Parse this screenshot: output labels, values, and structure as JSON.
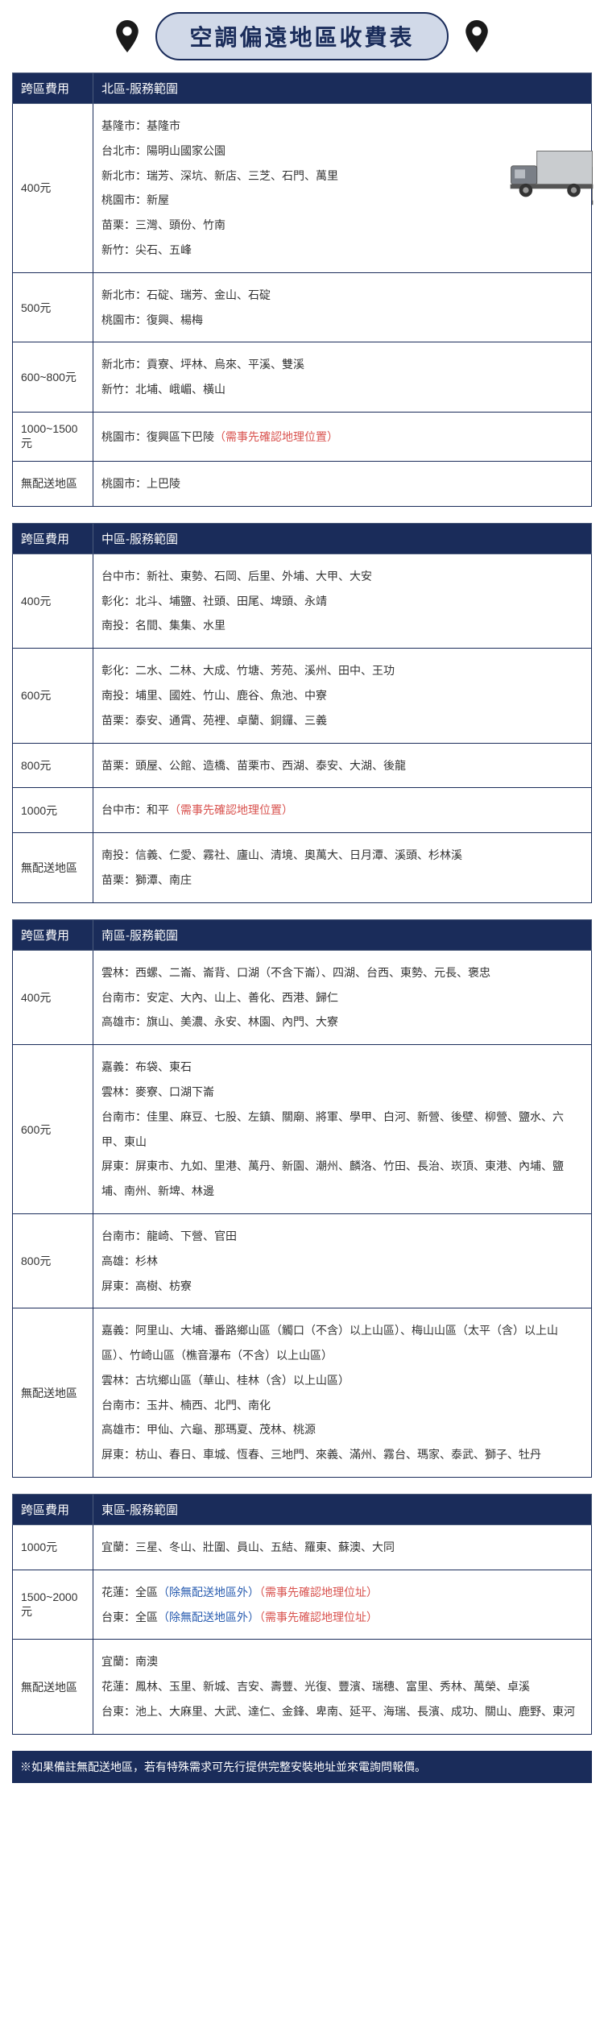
{
  "title": "空調偏遠地區收費表",
  "fee_header": "跨區費用",
  "footer": "※如果備註無配送地區，若有特殊需求可先行提供完整安裝地址並來電詢問報價。",
  "colors": {
    "header_bg": "#1a2c5a",
    "title_bg": "#d1d9e8",
    "note_red": "#d9534f",
    "note_blue": "#2a5db0"
  },
  "regions": [
    {
      "name": "北區-服務範圍",
      "truck": true,
      "rows": [
        {
          "fee": "400元",
          "lines": [
            "基隆市：基隆市",
            "台北市：陽明山國家公園",
            "新北市：瑞芳、深坑、新店、三芝、石門、萬里",
            "桃園市：新屋",
            "苗栗：三灣、頭份、竹南",
            "新竹：尖石、五峰"
          ]
        },
        {
          "fee": "500元",
          "lines": [
            "新北市：石碇、瑞芳、金山、石碇",
            "桃園市：復興、楊梅"
          ]
        },
        {
          "fee": "600~800元",
          "lines": [
            "新北市：貢寮、坪林、烏來、平溪、雙溪",
            "新竹：北埔、峨嵋、橫山"
          ]
        },
        {
          "fee": "1000~1500元",
          "lines": [
            "桃園市：復興區下巴陵<span class='note-red'>（需事先確認地理位置）</span>"
          ]
        },
        {
          "fee": "無配送地區",
          "lines": [
            "桃園市：上巴陵"
          ]
        }
      ]
    },
    {
      "name": "中區-服務範圍",
      "rows": [
        {
          "fee": "400元",
          "lines": [
            "台中市：新社、東勢、石岡、后里、外埔、大甲、大安",
            "彰化：北斗、埔鹽、社頭、田尾、埤頭、永靖",
            "南投：名間、集集、水里"
          ]
        },
        {
          "fee": "600元",
          "lines": [
            "彰化：二水、二林、大成、竹塘、芳苑、溪州、田中、王功",
            "南投：埔里、國姓、竹山、鹿谷、魚池、中寮",
            "苗栗：泰安、通霄、苑裡、卓蘭、銅鑼、三義"
          ]
        },
        {
          "fee": "800元",
          "lines": [
            "苗栗：頭屋、公館、造橋、苗栗市、西湖、泰安、大湖、後龍"
          ]
        },
        {
          "fee": "1000元",
          "lines": [
            "台中市：和平<span class='note-red'>（需事先確認地理位置）</span>"
          ]
        },
        {
          "fee": "無配送地區",
          "lines": [
            "南投：信義、仁愛、霧社、廬山、清境、奧萬大、日月潭、溪頭、杉林溪",
            "苗栗：獅潭、南庄"
          ]
        }
      ]
    },
    {
      "name": "南區-服務範圍",
      "truck": true,
      "truck_class": "t2",
      "rows": [
        {
          "fee": "400元",
          "lines": [
            "雲林：西螺、二崙、崙背、口湖（不含下崙）、四湖、台西、東勢、元長、褒忠",
            "台南市：安定、大內、山上、善化、西港、歸仁",
            "高雄市：旗山、美濃、永安、林園、內門、大寮"
          ]
        },
        {
          "fee": "600元",
          "lines": [
            "嘉義：布袋、東石",
            "雲林：麥寮、口湖下崙",
            "台南市：佳里、麻豆、七股、左鎮、關廟、將軍、學甲、白河、新營、後壁、柳營、鹽水、六甲、東山",
            "屏東：屏東市、九如、里港、萬丹、新園、潮州、麟洛、竹田、長治、崁頂、東港、內埔、鹽埔、南州、新埤、林邊"
          ]
        },
        {
          "fee": "800元",
          "lines": [
            "台南市：龍崎、下營、官田",
            "高雄：杉林",
            "屏東：高樹、枋寮"
          ]
        },
        {
          "fee": "無配送地區",
          "lines": [
            "嘉義：阿里山、大埔、番路鄉山區（觸口（不含）以上山區）、梅山山區（太平（含）以上山區）、竹崎山區（樵音瀑布（不含）以上山區）",
            "雲林：古坑鄉山區（華山、桂林（含）以上山區）",
            "台南市：玉井、楠西、北門、南化",
            "高雄市：甲仙、六龜、那瑪夏、茂林、桃源",
            "屏東：枋山、春日、車城、恆春、三地門、來義、滿州、霧台、瑪家、泰武、獅子、牡丹"
          ]
        }
      ]
    },
    {
      "name": "東區-服務範圍",
      "rows": [
        {
          "fee": "1000元",
          "lines": [
            "宜蘭：三星、冬山、壯圍、員山、五結、羅東、蘇澳、大同"
          ]
        },
        {
          "fee": "1500~2000元",
          "lines": [
            "花蓮：全區<span class='note-blue'>（除無配送地區外）</span><span class='note-red'>（需事先確認地理位址）</span>",
            "台東：全區<span class='note-blue'>（除無配送地區外）</span><span class='note-red'>（需事先確認地理位址）</span>"
          ]
        },
        {
          "fee": "無配送地區",
          "lines": [
            "宜蘭：南澳",
            "花蓮：鳳林、玉里、新城、吉安、壽豐、光復、豐濱、瑞穗、富里、秀林、萬榮、卓溪",
            "台東：池上、大麻里、大武、達仁、金鋒、卑南、延平、海瑞、長濱、成功、關山、鹿野、東河"
          ]
        }
      ]
    }
  ]
}
